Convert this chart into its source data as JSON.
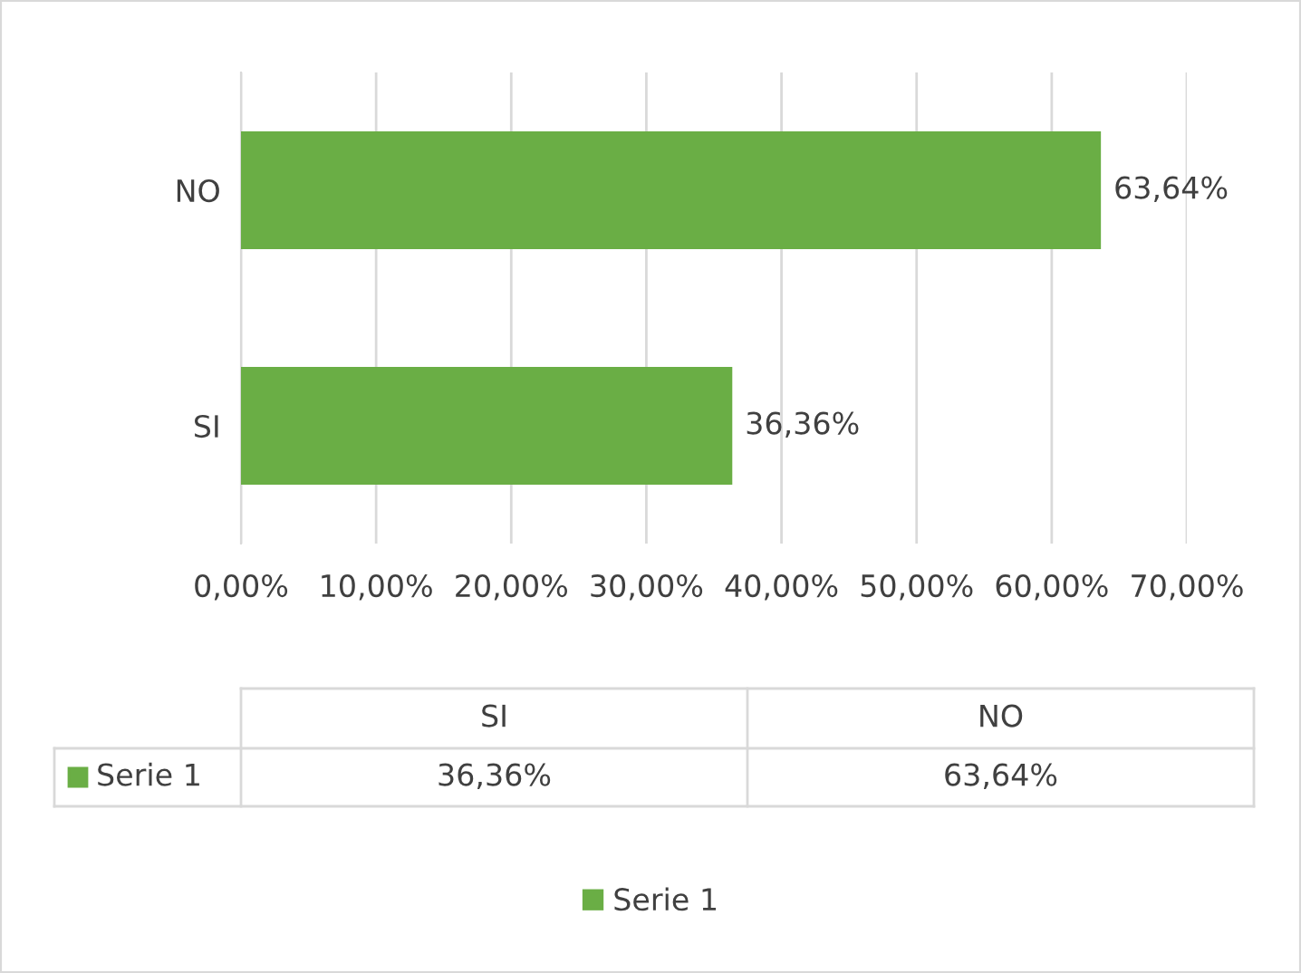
{
  "chart_data": {
    "type": "bar",
    "orientation": "horizontal",
    "categories": [
      "NO",
      "SI"
    ],
    "series": [
      {
        "name": "Serie 1",
        "color": "#6aae45",
        "values": [
          63.64,
          36.36
        ],
        "value_labels": [
          "63,64%",
          "36,36%"
        ]
      }
    ],
    "xlim": [
      0,
      70
    ],
    "xticks": [
      {
        "value": 0,
        "label": "0,00%"
      },
      {
        "value": 10,
        "label": "10,00%"
      },
      {
        "value": 20,
        "label": "20,00%"
      },
      {
        "value": 30,
        "label": "30,00%"
      },
      {
        "value": 40,
        "label": "40,00%"
      },
      {
        "value": 50,
        "label": "50,00%"
      },
      {
        "value": 60,
        "label": "60,00%"
      },
      {
        "value": 70,
        "label": "70,00%"
      }
    ],
    "grid": "x",
    "legend": "bottom"
  }
}
